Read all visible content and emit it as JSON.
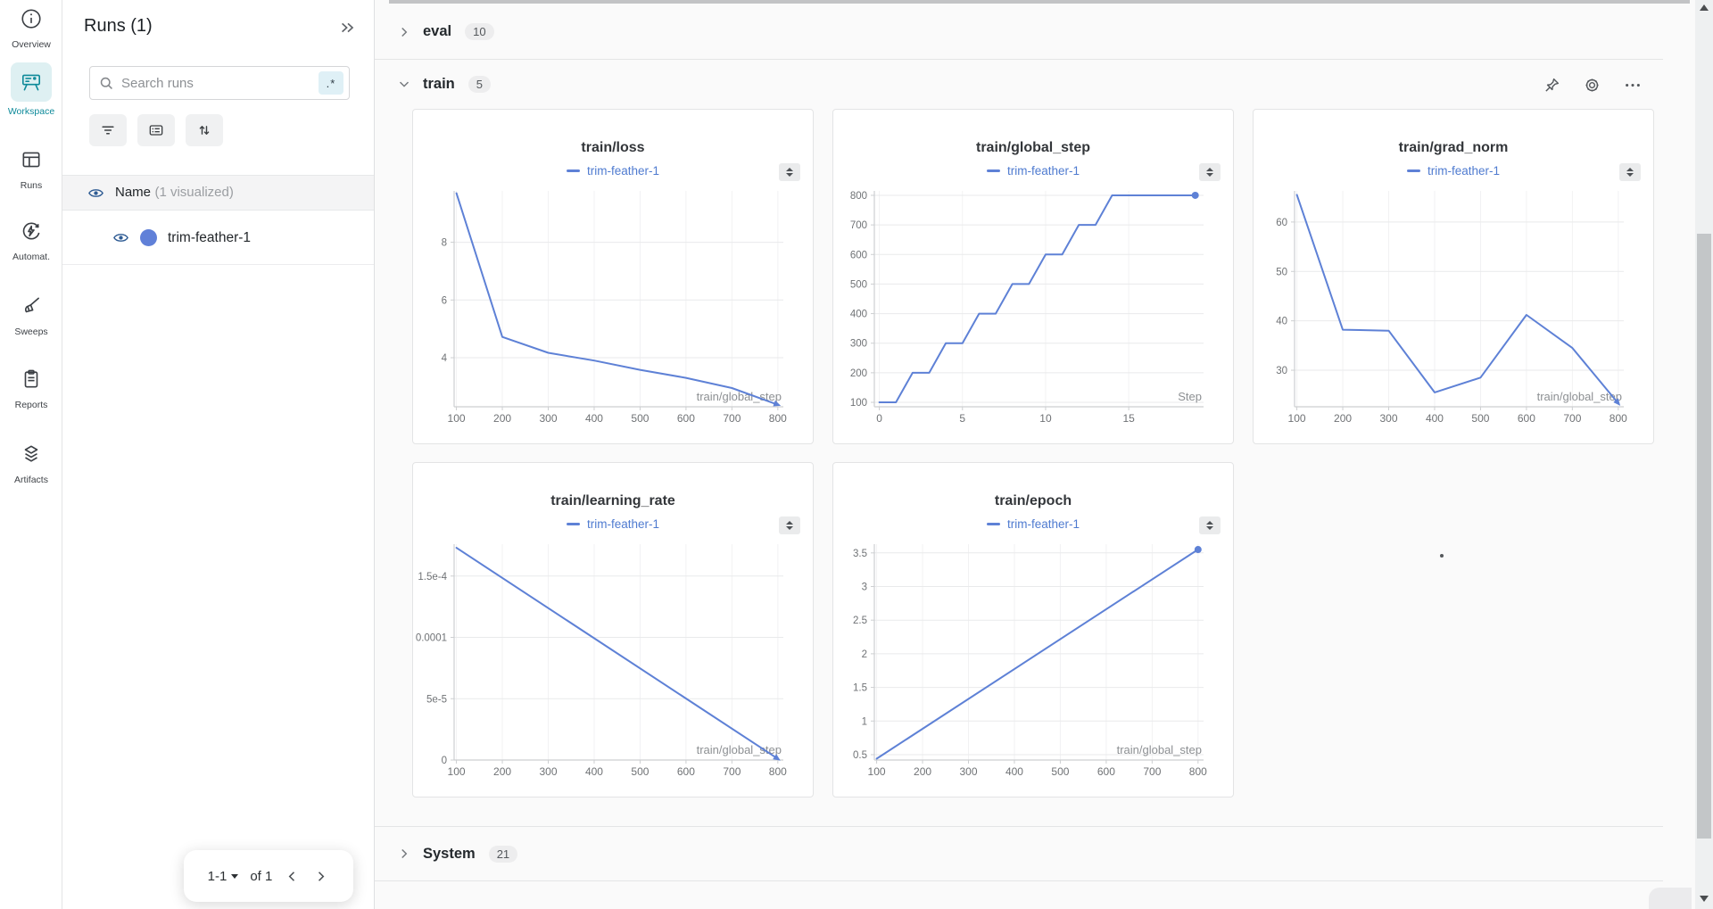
{
  "sidebar": {
    "items": [
      {
        "id": "overview",
        "label": "Overview"
      },
      {
        "id": "workspace",
        "label": "Workspace",
        "active": true
      },
      {
        "id": "runs",
        "label": "Runs"
      },
      {
        "id": "automations",
        "label": "Automat."
      },
      {
        "id": "sweeps",
        "label": "Sweeps"
      },
      {
        "id": "reports",
        "label": "Reports"
      },
      {
        "id": "artifacts",
        "label": "Artifacts"
      }
    ]
  },
  "runs_panel": {
    "title": "Runs (1)",
    "search_placeholder": "Search runs",
    "regex_toggle": ".*",
    "name_header": "Name",
    "visualized_note": "(1 visualized)",
    "run_name": "trim-feather-1",
    "pagination": {
      "range": "1-1",
      "of": "of 1"
    }
  },
  "sections": {
    "eval": {
      "label": "eval",
      "count": "10"
    },
    "train": {
      "label": "train",
      "count": "5"
    },
    "system": {
      "label": "System",
      "count": "21"
    }
  },
  "icons": {
    "toolbar": [
      "pin-icon",
      "gear-icon",
      "overflow-menu-icon"
    ],
    "run_list_buttons": [
      "filter-icon",
      "run-list-icon",
      "sort-icon"
    ],
    "visibility": "eye-icon",
    "search": "search-icon",
    "panel_control": "up-down-handle-icon"
  },
  "colors": {
    "accent_line": "#5e81d6",
    "legend_text": "#4f7bd0",
    "run_dot": "#6080d8",
    "teal": "#0e8a9a"
  },
  "chart_data": [
    {
      "type": "line",
      "title": "train/loss",
      "legend": "trim-feather-1",
      "xlabel": "train/global_step",
      "x": [
        100,
        200,
        300,
        400,
        500,
        600,
        700,
        800
      ],
      "y": [
        9.7,
        4.72,
        4.17,
        3.9,
        3.58,
        3.3,
        2.95,
        2.37
      ],
      "xticks": [
        100,
        200,
        300,
        400,
        500,
        600,
        700,
        800
      ],
      "xtick_labels": [
        "100",
        "200",
        "300",
        "400",
        "500",
        "600",
        "700",
        "800"
      ],
      "yticks": [
        4,
        6,
        8
      ],
      "ytick_labels": [
        "4",
        "6",
        "8"
      ],
      "xlim": [
        95,
        812
      ],
      "ylim": [
        2.3,
        9.78
      ],
      "grid": true,
      "legend_position": "top",
      "end_marker": "arrow"
    },
    {
      "type": "line",
      "title": "train/global_step",
      "legend": "trim-feather-1",
      "xlabel": "Step",
      "x": [
        0,
        1,
        2,
        3,
        4,
        5,
        6,
        7,
        8,
        9,
        10,
        11,
        12,
        13,
        14,
        19
      ],
      "y": [
        100,
        100,
        200,
        200,
        300,
        300,
        400,
        400,
        500,
        500,
        600,
        600,
        700,
        700,
        800,
        800
      ],
      "xticks": [
        0,
        5,
        10,
        15
      ],
      "xtick_labels": [
        "0",
        "5",
        "10",
        "15"
      ],
      "yticks": [
        100,
        200,
        300,
        400,
        500,
        600,
        700,
        800
      ],
      "ytick_labels": [
        "100",
        "200",
        "300",
        "400",
        "500",
        "600",
        "700",
        "800"
      ],
      "xlim": [
        -0.3,
        19.5
      ],
      "ylim": [
        85,
        815
      ],
      "grid": true,
      "legend_position": "top",
      "end_marker": "dot"
    },
    {
      "type": "line",
      "title": "train/grad_norm",
      "legend": "trim-feather-1",
      "xlabel": "train/global_step",
      "x": [
        100,
        200,
        300,
        400,
        500,
        600,
        700,
        800
      ],
      "y": [
        65.5,
        38.2,
        38.0,
        25.5,
        28.5,
        41.2,
        34.5,
        23.3
      ],
      "xticks": [
        100,
        200,
        300,
        400,
        500,
        600,
        700,
        800
      ],
      "xtick_labels": [
        "100",
        "200",
        "300",
        "400",
        "500",
        "600",
        "700",
        "800"
      ],
      "yticks": [
        30,
        40,
        50,
        60
      ],
      "ytick_labels": [
        "30",
        "40",
        "50",
        "60"
      ],
      "xlim": [
        95,
        812
      ],
      "ylim": [
        22.6,
        66.3
      ],
      "grid": true,
      "legend_position": "top",
      "end_marker": "arrow"
    },
    {
      "type": "line",
      "title": "train/learning_rate",
      "legend": "trim-feather-1",
      "xlabel": "train/global_step",
      "x": [
        100,
        800
      ],
      "y": [
        0.000173,
        1e-06
      ],
      "xticks": [
        100,
        200,
        300,
        400,
        500,
        600,
        700,
        800
      ],
      "xtick_labels": [
        "100",
        "200",
        "300",
        "400",
        "500",
        "600",
        "700",
        "800"
      ],
      "yticks": [
        0,
        5e-05,
        0.0001,
        0.00015
      ],
      "ytick_labels": [
        "0",
        "5e-5",
        "0.0001",
        "1.5e-4"
      ],
      "xlim": [
        95,
        812
      ],
      "ylim": [
        0,
        0.000176
      ],
      "grid": true,
      "legend_position": "top",
      "end_marker": "arrow"
    },
    {
      "type": "line",
      "title": "train/epoch",
      "legend": "trim-feather-1",
      "xlabel": "train/global_step",
      "x": [
        100,
        800
      ],
      "y": [
        0.44,
        3.55
      ],
      "xticks": [
        100,
        200,
        300,
        400,
        500,
        600,
        700,
        800
      ],
      "xtick_labels": [
        "100",
        "200",
        "300",
        "400",
        "500",
        "600",
        "700",
        "800"
      ],
      "yticks": [
        0.5,
        1,
        1.5,
        2,
        2.5,
        3,
        3.5
      ],
      "ytick_labels": [
        "0.5",
        "1",
        "1.5",
        "2",
        "2.5",
        "3",
        "3.5"
      ],
      "xlim": [
        95,
        812
      ],
      "ylim": [
        0.42,
        3.63
      ],
      "grid": true,
      "legend_position": "top",
      "end_marker": "dot"
    }
  ]
}
